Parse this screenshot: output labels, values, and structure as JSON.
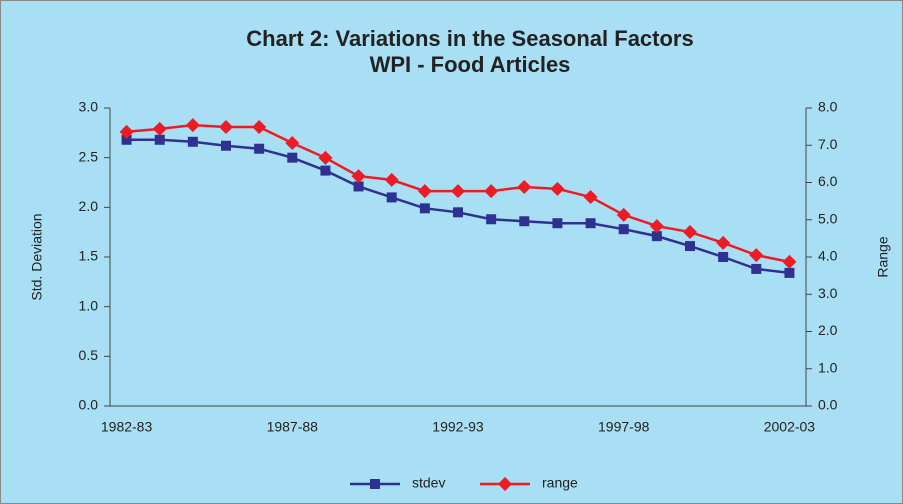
{
  "chart_data": {
    "type": "line",
    "title": "Chart 2: Variations in the Seasonal Factors",
    "subtitle": "WPI - Food Articles",
    "y_label": "Std. Deviation",
    "y2_label": "Range",
    "categories": [
      "1982-83",
      null,
      null,
      null,
      null,
      "1987-88",
      null,
      null,
      null,
      null,
      "1992-93",
      null,
      null,
      null,
      null,
      "1997-98",
      null,
      null,
      null,
      null,
      "2002-03"
    ],
    "series": [
      {
        "name": "stdev",
        "color": "#2e3192",
        "marker": "square",
        "values": [
          2.68,
          2.68,
          2.66,
          2.62,
          2.59,
          2.5,
          2.37,
          2.21,
          2.1,
          1.99,
          1.95,
          1.88,
          1.86,
          1.84,
          1.84,
          1.78,
          1.71,
          1.61,
          1.5,
          1.38,
          1.34
        ]
      },
      {
        "name": "range",
        "color": "#ed1c24",
        "marker": "diamond",
        "axis": "y2",
        "values": [
          7.36,
          7.44,
          7.54,
          7.49,
          7.49,
          7.06,
          6.66,
          6.17,
          6.07,
          5.77,
          5.77,
          5.77,
          5.88,
          5.83,
          5.61,
          5.13,
          4.83,
          4.67,
          4.38,
          4.05,
          3.87
        ]
      }
    ],
    "ylim": [
      0,
      3
    ],
    "yticks": [
      {
        "value": 0,
        "label": "0.0"
      },
      0.5,
      {
        "value": 1,
        "label": "1.0"
      },
      1.5,
      {
        "value": 2,
        "label": "2.0"
      },
      2.5,
      {
        "value": 3,
        "label": "3.0"
      }
    ],
    "y2lim": [
      0,
      8
    ],
    "y2ticks": [
      {
        "value": 0,
        "label": "0.0"
      },
      {
        "value": 1,
        "label": "1.0"
      },
      {
        "value": 2,
        "label": "2.0"
      },
      {
        "value": 3,
        "label": "3.0"
      },
      {
        "value": 4,
        "label": "4.0"
      },
      {
        "value": 5,
        "label": "5.0"
      },
      {
        "value": 6,
        "label": "6.0"
      },
      {
        "value": 7,
        "label": "7.0"
      },
      {
        "value": 8,
        "label": "8.0"
      }
    ],
    "grid": false,
    "legend": "bottom"
  }
}
